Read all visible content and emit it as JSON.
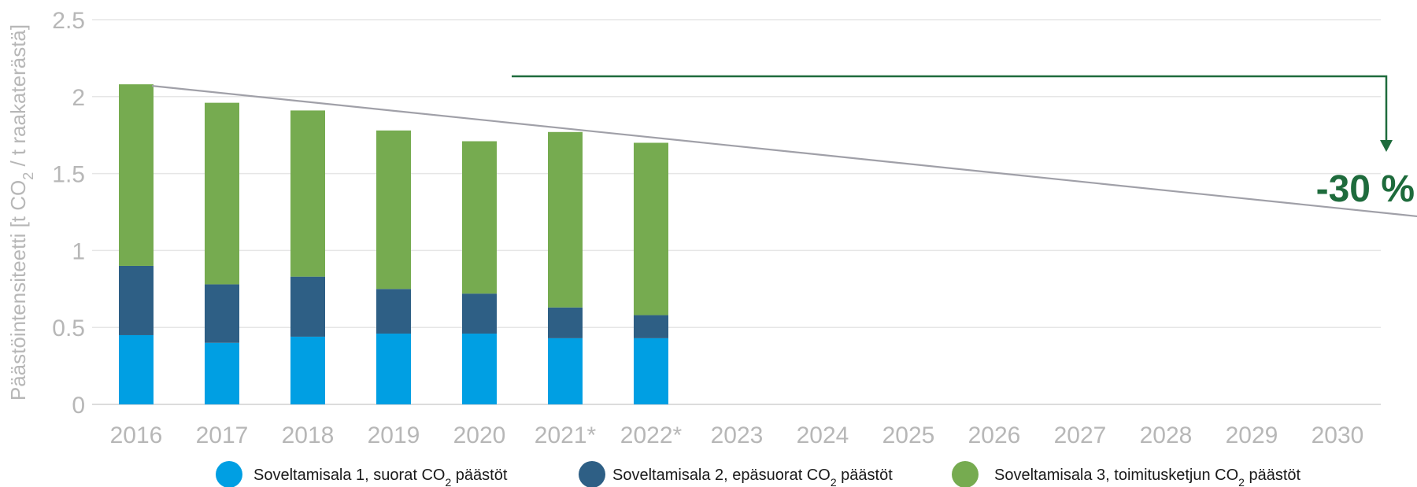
{
  "chart_data": {
    "type": "bar",
    "stacked": true,
    "categories": [
      "2016",
      "2017",
      "2018",
      "2019",
      "2020",
      "2021*",
      "2022*",
      "2023",
      "2024",
      "2025",
      "2026",
      "2027",
      "2028",
      "2029",
      "2030"
    ],
    "series": [
      {
        "name": "Soveltamisala 1, suorat CO2 päästöt",
        "legend_prefix": "Soveltamisala 1, suorat CO",
        "legend_suffix": " päästöt",
        "color": "#009fe3",
        "values": [
          0.45,
          0.4,
          0.44,
          0.46,
          0.46,
          0.43,
          0.43,
          null,
          null,
          null,
          null,
          null,
          null,
          null,
          null
        ]
      },
      {
        "name": "Soveltamisala 2, epäsuorat CO2 päästöt",
        "legend_prefix": "Soveltamisala 2, epäsuorat CO",
        "legend_suffix": " päästöt",
        "color": "#2e5f85",
        "values": [
          0.45,
          0.38,
          0.39,
          0.29,
          0.26,
          0.2,
          0.15,
          null,
          null,
          null,
          null,
          null,
          null,
          null,
          null
        ]
      },
      {
        "name": "Soveltamisala 3, toimitusketjun CO2 päästöt",
        "legend_prefix": "Soveltamisala 3, toimitusketjun CO",
        "legend_suffix": " päästöt",
        "color": "#76ab50",
        "values": [
          1.18,
          1.18,
          1.08,
          1.03,
          0.99,
          1.14,
          1.12,
          null,
          null,
          null,
          null,
          null,
          null,
          null,
          null
        ]
      }
    ],
    "trend_line": {
      "from": [
        "2016",
        2.07
      ],
      "to": [
        "2030",
        1.26
      ],
      "color": "#a0a0a8"
    },
    "target_label": "-30 %",
    "target_color": "#1e6b3c",
    "ylabel_prefix": "Päästöintensiteetti [t CO",
    "ylabel_suffix": " / t raakaterästä]",
    "subscript": "2",
    "yticks": [
      "0",
      "0.5",
      "1",
      "1.5",
      "2",
      "2.5"
    ],
    "ylim": [
      0,
      2.5
    ],
    "grid": true,
    "legend_position": "bottom"
  }
}
